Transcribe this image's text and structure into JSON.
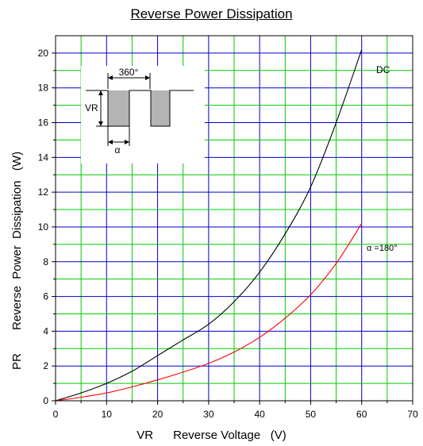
{
  "chart_data": {
    "type": "line",
    "title": "Reverse Power Dissipation",
    "xlabel": "VR      Reverse Voltage   (V)",
    "ylabel": "PR       Reverse  Power  Dissipation   (W)",
    "xlim": [
      0,
      70
    ],
    "ylim": [
      0,
      21
    ],
    "xticks": [
      0,
      10,
      20,
      30,
      40,
      50,
      60,
      70
    ],
    "yticks": [
      0,
      2,
      4,
      6,
      8,
      10,
      12,
      14,
      16,
      18,
      20
    ],
    "grid": true,
    "colors": {
      "major_grid": "#0000cc",
      "minor_grid": "#00cc00",
      "DC": "#000000",
      "alpha180": "#ff0000"
    },
    "series": [
      {
        "name": "DC",
        "x": [
          0,
          5,
          10,
          15,
          20,
          25,
          30,
          35,
          40,
          45,
          50,
          55,
          60
        ],
        "y": [
          0,
          0.45,
          1.0,
          1.7,
          2.6,
          3.5,
          4.4,
          5.7,
          7.4,
          9.6,
          12.3,
          16.0,
          20.2
        ]
      },
      {
        "name": "α =180°",
        "x": [
          0,
          5,
          10,
          15,
          20,
          25,
          30,
          35,
          40,
          45,
          50,
          55,
          60
        ],
        "y": [
          0,
          0.2,
          0.45,
          0.8,
          1.2,
          1.65,
          2.15,
          2.8,
          3.65,
          4.75,
          6.1,
          7.9,
          10.2
        ]
      }
    ],
    "annotations": [
      "DC",
      "α =180°",
      "360°",
      "VR",
      "α"
    ]
  }
}
